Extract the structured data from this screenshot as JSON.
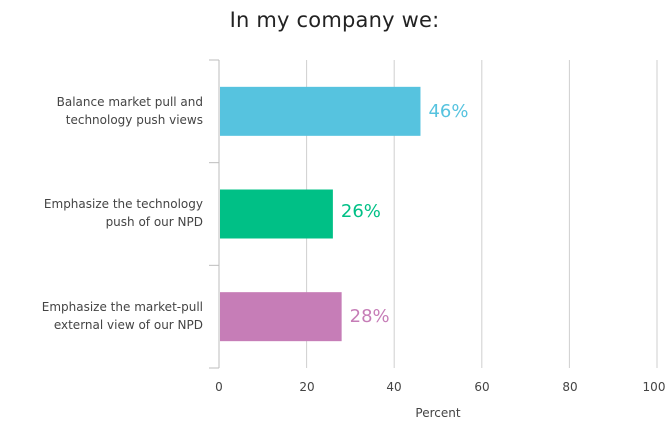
{
  "chart_data": {
    "type": "bar",
    "orientation": "horizontal",
    "title": "In my company we:",
    "xlabel": "Percent",
    "ylabel": "",
    "xlim": [
      0,
      100
    ],
    "ticks": [
      "0",
      "20",
      "40",
      "60",
      "80",
      "100"
    ],
    "grid": true,
    "categories": [
      "Balance market pull and\ntechnology push views",
      "Emphasize the technology\npush of our NPD",
      "Emphasize the market-pull\nexternal view of our NPD"
    ],
    "values": [
      46,
      26,
      28
    ],
    "data_labels": [
      "46%",
      "26%",
      "28%"
    ],
    "colors": [
      "#56c3df",
      "#00c086",
      "#c67db7"
    ]
  }
}
